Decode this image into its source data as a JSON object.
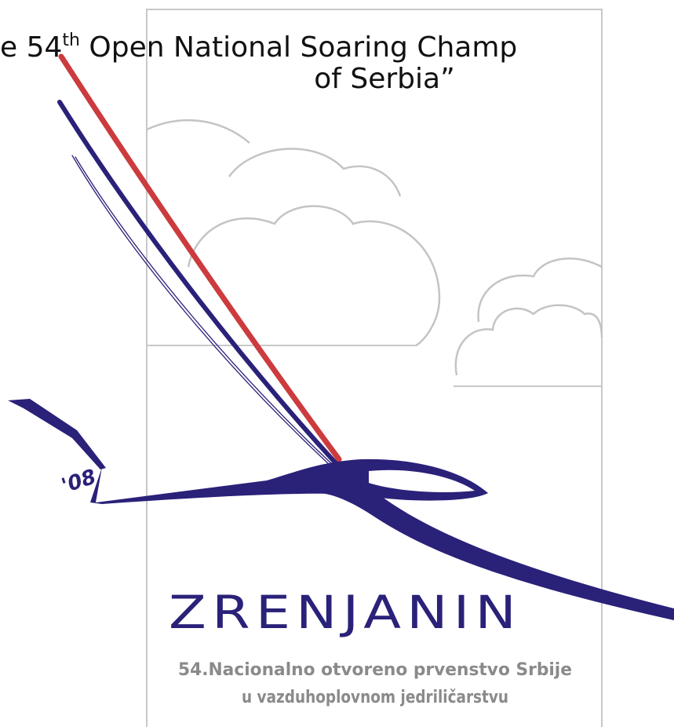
{
  "title": {
    "line1_start": "e 54",
    "line1_sup": "th",
    "line1_end": " Open National Soaring Champ",
    "line2": "of Serbia”"
  },
  "logo": {
    "year": "'08",
    "city": "ZRENJANIN",
    "subtitle1": "54.Nacionalno otvoreno prvenstvo Srbije",
    "subtitle2": "u vazduhoplovnom jedriličarstvu"
  }
}
